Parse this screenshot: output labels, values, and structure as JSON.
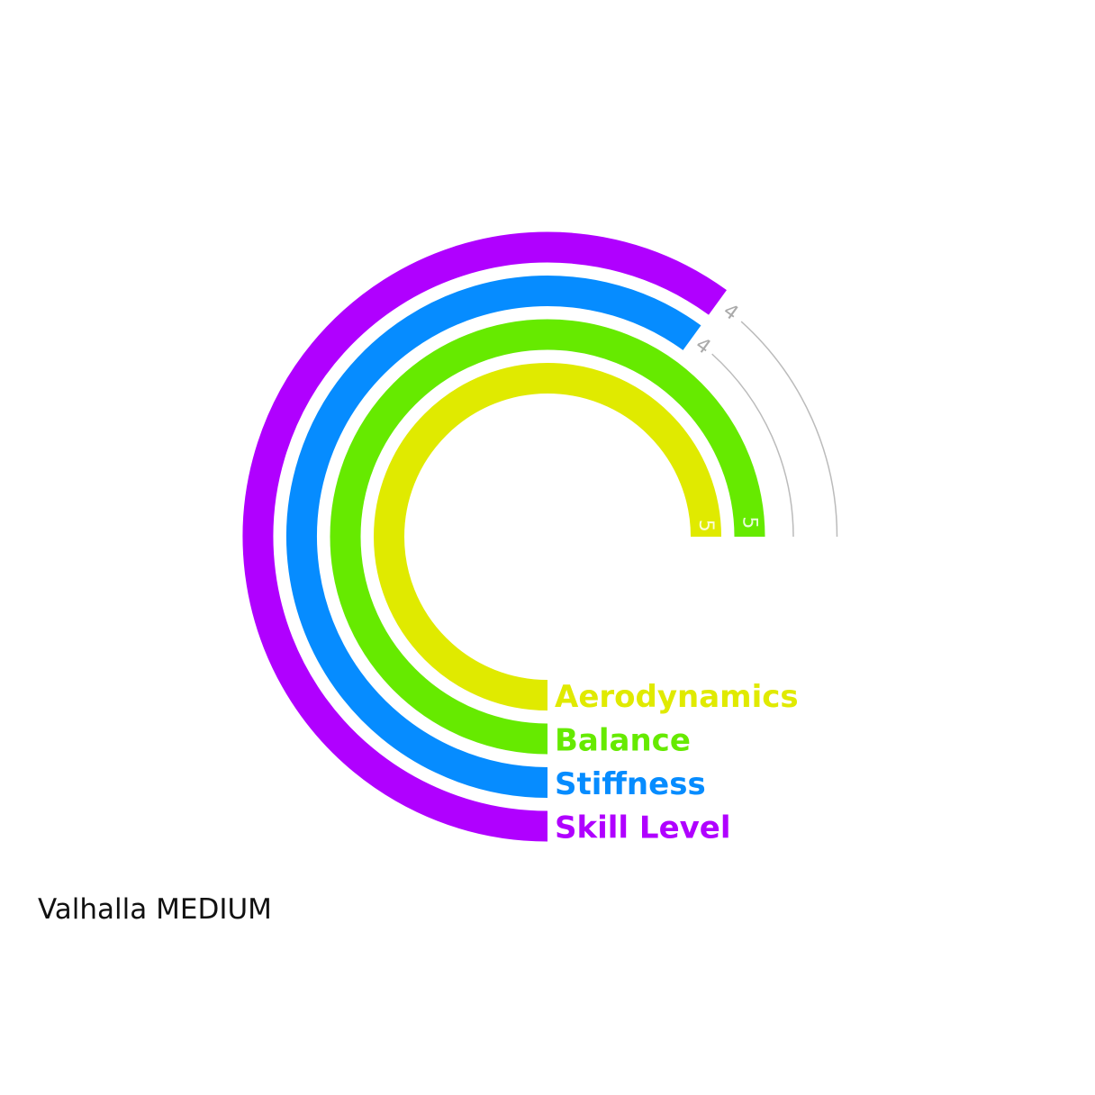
{
  "caption": "Valhalla MEDIUM",
  "chart_data": {
    "type": "radial-bar",
    "max_value": 5,
    "series": [
      {
        "name": "Aerodynamics",
        "value": 5,
        "color": "#e0ea00"
      },
      {
        "name": "Balance",
        "value": 5,
        "color": "#66ea00"
      },
      {
        "name": "Stiffness",
        "value": 4,
        "color": "#068cff"
      },
      {
        "name": "Skill Level",
        "value": 4,
        "color": "#b000ff"
      }
    ],
    "track_color": "#bbbbbb",
    "value_label_outside_color": "#aaaaaa",
    "legend": "bottom-center"
  }
}
